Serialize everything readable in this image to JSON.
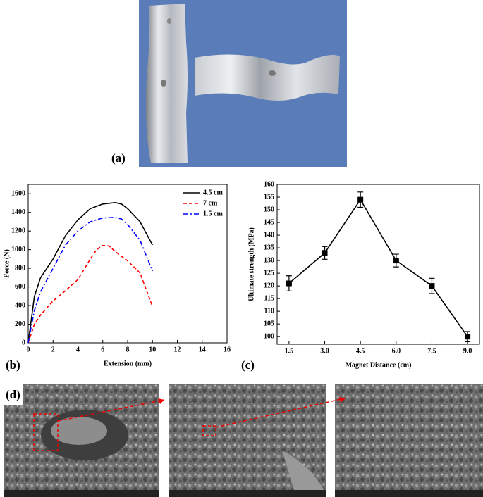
{
  "panels": {
    "a": "(a)",
    "b": "(b)",
    "c": "(c)",
    "d": "(d)"
  },
  "chart_data": [
    {
      "type": "line",
      "xlabel": "Extension (mm)",
      "ylabel": "Force (N)",
      "xlim": [
        0,
        16
      ],
      "ylim": [
        0,
        1700
      ],
      "xticks": [
        0,
        2,
        4,
        6,
        8,
        10,
        12,
        14,
        16
      ],
      "yticks": [
        0,
        200,
        400,
        600,
        800,
        1000,
        1200,
        1400,
        1600
      ],
      "legend": "top-right",
      "series": [
        {
          "name": "4.5 cm",
          "color": "#000000",
          "dash": "solid",
          "x": [
            0,
            0.5,
            1,
            2,
            3,
            4,
            5,
            6,
            7,
            7.5,
            8,
            9,
            10
          ],
          "values": [
            0,
            500,
            700,
            900,
            1150,
            1320,
            1440,
            1490,
            1505,
            1490,
            1440,
            1300,
            1050
          ]
        },
        {
          "name": "7 cm",
          "color": "#ff0000",
          "dash": "dashed",
          "x": [
            0,
            0.5,
            1,
            2,
            3,
            4,
            5,
            5.5,
            6,
            6.5,
            7,
            8,
            9,
            10
          ],
          "values": [
            0,
            200,
            300,
            450,
            560,
            680,
            900,
            1000,
            1045,
            1040,
            980,
            880,
            750,
            390
          ]
        },
        {
          "name": "1.5 cm",
          "color": "#0000ff",
          "dash": "dashdot",
          "x": [
            0,
            0.5,
            1,
            2,
            3,
            4,
            5,
            6,
            7,
            7.5,
            8,
            9,
            10
          ],
          "values": [
            0,
            350,
            550,
            800,
            1050,
            1200,
            1300,
            1340,
            1345,
            1330,
            1270,
            1100,
            770
          ]
        }
      ]
    },
    {
      "type": "errorline",
      "xlabel": "Magnet Distance (cm)",
      "ylabel": "Ultimate strength (MPa)",
      "xlim": [
        1,
        9.5
      ],
      "ylim": [
        97,
        160
      ],
      "xticks": [
        1.5,
        {
          "value": 3,
          "label": "3.0"
        },
        4.5,
        {
          "value": 6,
          "label": "6.0"
        },
        7.5,
        {
          "value": 9,
          "label": "9.0"
        }
      ],
      "yticks": [
        100,
        105,
        110,
        115,
        120,
        125,
        130,
        135,
        140,
        145,
        150,
        155,
        160
      ],
      "color": "#000000",
      "x": [
        1.5,
        3,
        4.5,
        6,
        7.5,
        9
      ],
      "values": [
        121,
        133,
        154,
        130,
        120,
        100
      ],
      "errors": [
        3,
        2.5,
        3,
        2.5,
        3,
        2
      ]
    }
  ]
}
